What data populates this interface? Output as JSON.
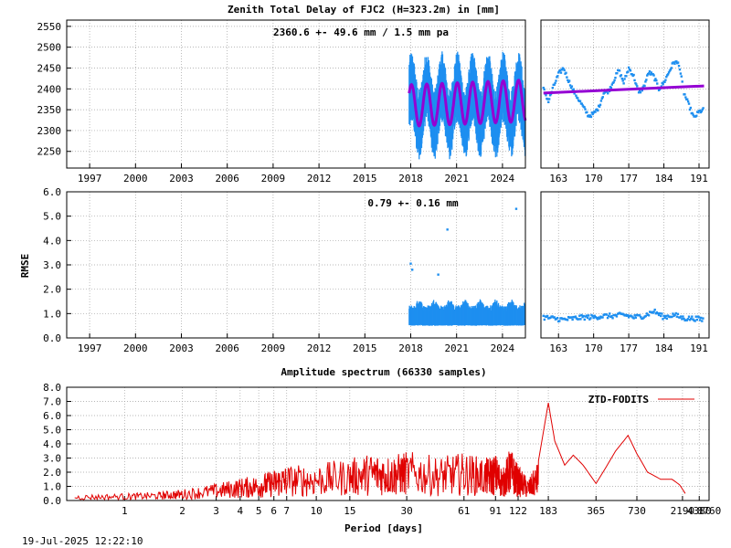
{
  "timestamp": "19-Jul-2025 12:22:10",
  "colors": {
    "ztd_points": "#1e8ff0",
    "ztd_model": "#9400d3",
    "rmse_points": "#1e8ff0",
    "spectrum_line": "#e00000",
    "grid": "#a0a0a0",
    "axis": "#000000"
  },
  "chart_data": [
    {
      "type": "scatter",
      "title": "Zenith Total Delay of FJC2 (H=323.2m) in [mm]",
      "annotation": "2360.6 +-  49.6 mm /  1.5 mm pa",
      "ylim": [
        2210,
        2565
      ],
      "yticks": [
        2250,
        2300,
        2350,
        2400,
        2450,
        2500,
        2550
      ],
      "ytick_labels": [
        "2250",
        "2300",
        "2350",
        "2400",
        "2450",
        "2500",
        "2550"
      ],
      "xlim": [
        1995.5,
        2025.5
      ],
      "xticks": [
        1997,
        2000,
        2003,
        2006,
        2009,
        2012,
        2015,
        2018,
        2021,
        2024
      ],
      "xtick_labels": [
        "1997",
        "2000",
        "2003",
        "2006",
        "2009",
        "2012",
        "2015",
        "2018",
        "2021",
        "2024"
      ],
      "series": [
        {
          "kind": "points",
          "x_start": 2017.9,
          "x_end": 2025.5,
          "mean": 2360,
          "seasonal_amplitude": 45,
          "scatter_range": [
            2225,
            2525
          ]
        },
        {
          "kind": "model",
          "x_start": 2017.9,
          "x_end": 2025.5,
          "mean": 2360,
          "amplitude": 50,
          "trend_mm_per_year": 1.5
        }
      ]
    },
    {
      "type": "scatter",
      "title": "",
      "ylim": [
        2210,
        2565
      ],
      "xlim": [
        159.5,
        193
      ],
      "xticks": [
        163,
        170,
        177,
        184,
        191
      ],
      "xtick_labels": [
        "163",
        "170",
        "177",
        "184",
        "191"
      ],
      "series": [
        {
          "kind": "points",
          "x": [
            160,
            161,
            162,
            163,
            164,
            165,
            166,
            167,
            168,
            169,
            170,
            171,
            172,
            173,
            174,
            175,
            176,
            177,
            178,
            179,
            180,
            181,
            182,
            183,
            184,
            185,
            186,
            187,
            188,
            189,
            190,
            191,
            192
          ],
          "y": [
            2400,
            2370,
            2405,
            2435,
            2450,
            2420,
            2395,
            2375,
            2355,
            2335,
            2340,
            2355,
            2390,
            2395,
            2420,
            2445,
            2415,
            2450,
            2430,
            2390,
            2405,
            2440,
            2430,
            2400,
            2415,
            2440,
            2465,
            2460,
            2390,
            2360,
            2330,
            2345,
            2350
          ]
        },
        {
          "kind": "model",
          "x": [
            160,
            192
          ],
          "y": [
            2390,
            2407
          ]
        }
      ]
    },
    {
      "type": "scatter",
      "title": "",
      "annotation": "0.79 +-  0.16 mm",
      "ylabel": "RMSE",
      "ylim": [
        0.0,
        6.0
      ],
      "yticks": [
        0.0,
        1.0,
        2.0,
        3.0,
        4.0,
        5.0,
        6.0
      ],
      "ytick_labels": [
        "0.0",
        "1.0",
        "2.0",
        "3.0",
        "4.0",
        "5.0",
        "6.0"
      ],
      "xlim": [
        1995.5,
        2025.5
      ],
      "xticks": [
        1997,
        2000,
        2003,
        2006,
        2009,
        2012,
        2015,
        2018,
        2021,
        2024
      ],
      "xtick_labels": [
        "1997",
        "2000",
        "2003",
        "2006",
        "2009",
        "2012",
        "2015",
        "2018",
        "2021",
        "2024"
      ],
      "series": [
        {
          "kind": "points",
          "x_start": 2017.9,
          "x_end": 2025.5,
          "typical": 0.8,
          "range": [
            0.5,
            1.5
          ],
          "outliers": [
            {
              "x": 2018.0,
              "y": 3.05
            },
            {
              "x": 2018.1,
              "y": 2.8
            },
            {
              "x": 2019.8,
              "y": 2.6
            },
            {
              "x": 2020.4,
              "y": 4.45
            },
            {
              "x": 2024.9,
              "y": 5.3
            }
          ]
        }
      ]
    },
    {
      "type": "scatter",
      "title": "",
      "ylim": [
        0.0,
        6.0
      ],
      "xlim": [
        159.5,
        193
      ],
      "xticks": [
        163,
        170,
        177,
        184,
        191
      ],
      "xtick_labels": [
        "163",
        "170",
        "177",
        "184",
        "191"
      ],
      "series": [
        {
          "kind": "points",
          "x": [
            160,
            162,
            164,
            166,
            168,
            170,
            172,
            174,
            176,
            178,
            180,
            182,
            184,
            186,
            188,
            190,
            192
          ],
          "y": [
            0.85,
            0.8,
            0.75,
            0.8,
            0.85,
            0.85,
            0.9,
            0.9,
            0.95,
            0.85,
            0.9,
            1.1,
            0.85,
            0.95,
            0.8,
            0.8,
            0.75
          ]
        }
      ]
    },
    {
      "type": "line",
      "title": "Amplitude spectrum (66330 samples)",
      "xlabel": "Period [days]",
      "x_scale": "reciprocal",
      "xlim": [
        0.5,
        8760
      ],
      "ylim": [
        0.0,
        8.0
      ],
      "yticks": [
        0.0,
        1.0,
        2.0,
        3.0,
        4.0,
        5.0,
        6.0,
        7.0,
        8.0
      ],
      "ytick_labels": [
        "0.0",
        "1.0",
        "2.0",
        "3.0",
        "4.0",
        "5.0",
        "6.0",
        "7.0",
        "8.0"
      ],
      "xticks": [
        1,
        2,
        3,
        4,
        5,
        6,
        7,
        10,
        15,
        30,
        61,
        91,
        122,
        183,
        365,
        730,
        2190,
        4380,
        8760
      ],
      "xtick_labels": [
        "1",
        "2",
        "3",
        "4",
        "5",
        "6",
        "7",
        "10",
        "15",
        "30",
        "61",
        "91",
        "122",
        "183",
        "365",
        "730",
        "2190",
        "4380",
        "8760"
      ],
      "legend": "top-right",
      "series": [
        {
          "name": "ZTD-FODITS",
          "x": [
            0.55,
            1,
            1.5,
            2,
            3,
            4,
            5,
            6,
            7,
            10,
            15,
            20,
            25,
            30,
            45,
            61,
            80,
            91,
            100,
            110,
            122,
            140,
            160,
            183,
            200,
            230,
            260,
            300,
            365,
            500,
            620,
            730,
            900,
            1200,
            1600,
            2000,
            2400
          ],
          "y": [
            0.4,
            0.5,
            0.6,
            0.8,
            1.2,
            1.6,
            1.8,
            2.2,
            2.5,
            2.6,
            3.0,
            3.4,
            3.2,
            3.5,
            3.1,
            3.4,
            3.0,
            3.3,
            2.2,
            3.8,
            2.5,
            1.5,
            2.8,
            6.9,
            4.2,
            2.5,
            3.2,
            2.5,
            1.2,
            3.5,
            4.6,
            3.3,
            2.0,
            1.5,
            1.5,
            1.1,
            0.5
          ]
        }
      ]
    }
  ]
}
